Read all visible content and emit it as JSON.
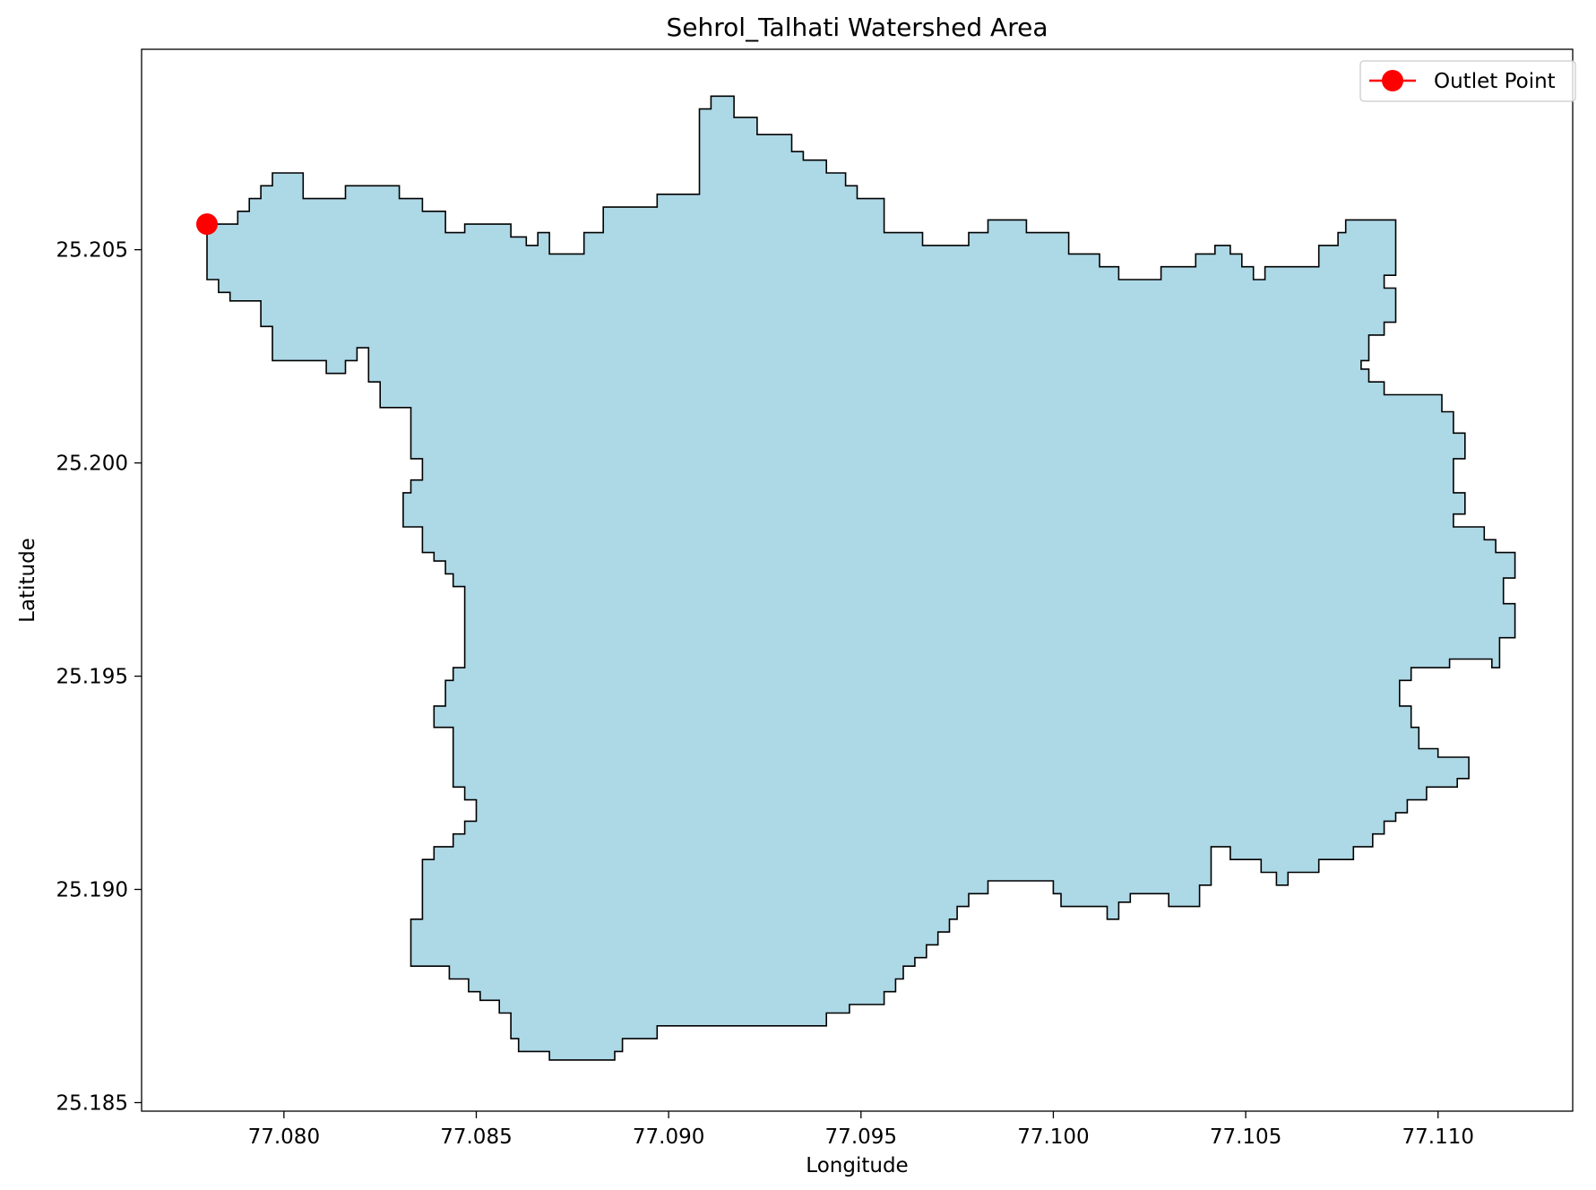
{
  "chart_data": {
    "type": "map",
    "title": "Sehrol_Talhati Watershed Area",
    "xlabel": "Longitude",
    "ylabel": "Latitude",
    "xlim": [
      77.0763,
      77.1135
    ],
    "ylim": [
      25.1848,
      25.2097
    ],
    "xticks": [
      77.08,
      77.085,
      77.09,
      77.095,
      77.1,
      77.105,
      77.11
    ],
    "xtick_labels": [
      "77.080",
      "77.085",
      "77.090",
      "77.095",
      "77.100",
      "77.105",
      "77.110"
    ],
    "yticks": [
      25.185,
      25.19,
      25.195,
      25.2,
      25.205
    ],
    "ytick_labels": [
      "25.185",
      "25.190",
      "25.195",
      "25.200",
      "25.205"
    ],
    "grid": false,
    "legend_position": "top-right",
    "legend": [
      {
        "label": "Outlet Point",
        "color": "#ff0000",
        "marker": "circle"
      }
    ],
    "watershed": {
      "fill_color": "#add8e6",
      "edge_color": "#000000",
      "boundary": [
        [
          77.078,
          25.2056
        ],
        [
          77.0788,
          25.2056
        ],
        [
          77.0788,
          25.2059
        ],
        [
          77.0791,
          25.2059
        ],
        [
          77.0791,
          25.2062
        ],
        [
          77.0794,
          25.2062
        ],
        [
          77.0794,
          25.2065
        ],
        [
          77.0797,
          25.2065
        ],
        [
          77.0797,
          25.2068
        ],
        [
          77.0805,
          25.2068
        ],
        [
          77.0805,
          25.2062
        ],
        [
          77.0816,
          25.2062
        ],
        [
          77.0816,
          25.2065
        ],
        [
          77.083,
          25.2065
        ],
        [
          77.083,
          25.2062
        ],
        [
          77.0836,
          25.2062
        ],
        [
          77.0836,
          25.2059
        ],
        [
          77.0842,
          25.2059
        ],
        [
          77.0842,
          25.2054
        ],
        [
          77.0847,
          25.2054
        ],
        [
          77.0847,
          25.2056
        ],
        [
          77.0859,
          25.2056
        ],
        [
          77.0859,
          25.2053
        ],
        [
          77.0863,
          25.2053
        ],
        [
          77.0863,
          25.2051
        ],
        [
          77.0866,
          25.2051
        ],
        [
          77.0866,
          25.2054
        ],
        [
          77.0869,
          25.2054
        ],
        [
          77.0869,
          25.2049
        ],
        [
          77.0878,
          25.2049
        ],
        [
          77.0878,
          25.2054
        ],
        [
          77.0883,
          25.2054
        ],
        [
          77.0883,
          25.206
        ],
        [
          77.0897,
          25.206
        ],
        [
          77.0897,
          25.2063
        ],
        [
          77.0908,
          25.2063
        ],
        [
          77.0908,
          25.2083
        ],
        [
          77.0911,
          25.2083
        ],
        [
          77.0911,
          25.2086
        ],
        [
          77.0917,
          25.2086
        ],
        [
          77.0917,
          25.2081
        ],
        [
          77.0923,
          25.2081
        ],
        [
          77.0923,
          25.2077
        ],
        [
          77.0932,
          25.2077
        ],
        [
          77.0932,
          25.2073
        ],
        [
          77.0935,
          25.2073
        ],
        [
          77.0935,
          25.2071
        ],
        [
          77.0941,
          25.2071
        ],
        [
          77.0941,
          25.2068
        ],
        [
          77.0946,
          25.2068
        ],
        [
          77.0946,
          25.2065
        ],
        [
          77.0949,
          25.2065
        ],
        [
          77.0949,
          25.2062
        ],
        [
          77.0956,
          25.2062
        ],
        [
          77.0956,
          25.2054
        ],
        [
          77.0966,
          25.2054
        ],
        [
          77.0966,
          25.2051
        ],
        [
          77.0978,
          25.2051
        ],
        [
          77.0978,
          25.2054
        ],
        [
          77.0983,
          25.2054
        ],
        [
          77.0983,
          25.2057
        ],
        [
          77.0993,
          25.2057
        ],
        [
          77.0993,
          25.2054
        ],
        [
          77.1004,
          25.2054
        ],
        [
          77.1004,
          25.2049
        ],
        [
          77.1012,
          25.2049
        ],
        [
          77.1012,
          25.2046
        ],
        [
          77.1017,
          25.2046
        ],
        [
          77.1017,
          25.2043
        ],
        [
          77.1028,
          25.2043
        ],
        [
          77.1028,
          25.2046
        ],
        [
          77.1037,
          25.2046
        ],
        [
          77.1037,
          25.2049
        ],
        [
          77.1042,
          25.2049
        ],
        [
          77.1042,
          25.2051
        ],
        [
          77.1046,
          25.2051
        ],
        [
          77.1046,
          25.2049
        ],
        [
          77.1049,
          25.2049
        ],
        [
          77.1049,
          25.2046
        ],
        [
          77.1052,
          25.2046
        ],
        [
          77.1052,
          25.2043
        ],
        [
          77.1055,
          25.2043
        ],
        [
          77.1055,
          25.2046
        ],
        [
          77.1069,
          25.2046
        ],
        [
          77.1069,
          25.2051
        ],
        [
          77.1074,
          25.2051
        ],
        [
          77.1074,
          25.2054
        ],
        [
          77.1076,
          25.2054
        ],
        [
          77.1076,
          25.2057
        ],
        [
          77.1089,
          25.2057
        ],
        [
          77.1089,
          25.2044
        ],
        [
          77.1086,
          25.2044
        ],
        [
          77.1086,
          25.2041
        ],
        [
          77.1089,
          25.2041
        ],
        [
          77.1089,
          25.2033
        ],
        [
          77.1086,
          25.2033
        ],
        [
          77.1086,
          25.203
        ],
        [
          77.1082,
          25.203
        ],
        [
          77.1082,
          25.2024
        ],
        [
          77.108,
          25.2024
        ],
        [
          77.108,
          25.2022
        ],
        [
          77.1082,
          25.2022
        ],
        [
          77.1082,
          25.2019
        ],
        [
          77.1086,
          25.2019
        ],
        [
          77.1086,
          25.2016
        ],
        [
          77.1101,
          25.2016
        ],
        [
          77.1101,
          25.2012
        ],
        [
          77.1104,
          25.2012
        ],
        [
          77.1104,
          25.2007
        ],
        [
          77.1107,
          25.2007
        ],
        [
          77.1107,
          25.2001
        ],
        [
          77.1104,
          25.2001
        ],
        [
          77.1104,
          25.1993
        ],
        [
          77.1107,
          25.1993
        ],
        [
          77.1107,
          25.1988
        ],
        [
          77.1104,
          25.1988
        ],
        [
          77.1104,
          25.1985
        ],
        [
          77.1112,
          25.1985
        ],
        [
          77.1112,
          25.1982
        ],
        [
          77.1115,
          25.1982
        ],
        [
          77.1115,
          25.1979
        ],
        [
          77.112,
          25.1979
        ],
        [
          77.112,
          25.1973
        ],
        [
          77.1117,
          25.1973
        ],
        [
          77.1117,
          25.1967
        ],
        [
          77.112,
          25.1967
        ],
        [
          77.112,
          25.1959
        ],
        [
          77.1116,
          25.1959
        ],
        [
          77.1116,
          25.1952
        ],
        [
          77.1114,
          25.1952
        ],
        [
          77.1114,
          25.1954
        ],
        [
          77.1103,
          25.1954
        ],
        [
          77.1103,
          25.1952
        ],
        [
          77.1093,
          25.1952
        ],
        [
          77.1093,
          25.1949
        ],
        [
          77.109,
          25.1949
        ],
        [
          77.109,
          25.1943
        ],
        [
          77.1093,
          25.1943
        ],
        [
          77.1093,
          25.1938
        ],
        [
          77.1095,
          25.1938
        ],
        [
          77.1095,
          25.1933
        ],
        [
          77.11,
          25.1933
        ],
        [
          77.11,
          25.1931
        ],
        [
          77.1108,
          25.1931
        ],
        [
          77.1108,
          25.1926
        ],
        [
          77.1105,
          25.1926
        ],
        [
          77.1105,
          25.1924
        ],
        [
          77.1097,
          25.1924
        ],
        [
          77.1097,
          25.1921
        ],
        [
          77.1092,
          25.1921
        ],
        [
          77.1092,
          25.1918
        ],
        [
          77.1089,
          25.1918
        ],
        [
          77.1089,
          25.1916
        ],
        [
          77.1086,
          25.1916
        ],
        [
          77.1086,
          25.1913
        ],
        [
          77.1083,
          25.1913
        ],
        [
          77.1083,
          25.191
        ],
        [
          77.1078,
          25.191
        ],
        [
          77.1078,
          25.1907
        ],
        [
          77.1069,
          25.1907
        ],
        [
          77.1069,
          25.1904
        ],
        [
          77.1061,
          25.1904
        ],
        [
          77.1061,
          25.1901
        ],
        [
          77.1058,
          25.1901
        ],
        [
          77.1058,
          25.1904
        ],
        [
          77.1054,
          25.1904
        ],
        [
          77.1054,
          25.1907
        ],
        [
          77.1046,
          25.1907
        ],
        [
          77.1046,
          25.191
        ],
        [
          77.1041,
          25.191
        ],
        [
          77.1041,
          25.1901
        ],
        [
          77.1038,
          25.1901
        ],
        [
          77.1038,
          25.1896
        ],
        [
          77.103,
          25.1896
        ],
        [
          77.103,
          25.1899
        ],
        [
          77.102,
          25.1899
        ],
        [
          77.102,
          25.1897
        ],
        [
          77.1017,
          25.1897
        ],
        [
          77.1017,
          25.1893
        ],
        [
          77.1014,
          25.1893
        ],
        [
          77.1014,
          25.1896
        ],
        [
          77.1002,
          25.1896
        ],
        [
          77.1002,
          25.1899
        ],
        [
          77.1,
          25.1899
        ],
        [
          77.1,
          25.1902
        ],
        [
          77.0983,
          25.1902
        ],
        [
          77.0983,
          25.1899
        ],
        [
          77.0978,
          25.1899
        ],
        [
          77.0978,
          25.1896
        ],
        [
          77.0975,
          25.1896
        ],
        [
          77.0975,
          25.1893
        ],
        [
          77.0973,
          25.1893
        ],
        [
          77.0973,
          25.189
        ],
        [
          77.097,
          25.189
        ],
        [
          77.097,
          25.1887
        ],
        [
          77.0967,
          25.1887
        ],
        [
          77.0967,
          25.1884
        ],
        [
          77.0964,
          25.1884
        ],
        [
          77.0964,
          25.1882
        ],
        [
          77.0961,
          25.1882
        ],
        [
          77.0961,
          25.1879
        ],
        [
          77.0959,
          25.1879
        ],
        [
          77.0959,
          25.1876
        ],
        [
          77.0956,
          25.1876
        ],
        [
          77.0956,
          25.1873
        ],
        [
          77.0947,
          25.1873
        ],
        [
          77.0947,
          25.1871
        ],
        [
          77.0941,
          25.1871
        ],
        [
          77.0941,
          25.1868
        ],
        [
          77.0897,
          25.1868
        ],
        [
          77.0897,
          25.1865
        ],
        [
          77.0888,
          25.1865
        ],
        [
          77.0888,
          25.1862
        ],
        [
          77.0886,
          25.1862
        ],
        [
          77.0886,
          25.186
        ],
        [
          77.0869,
          25.186
        ],
        [
          77.0869,
          25.1862
        ],
        [
          77.0861,
          25.1862
        ],
        [
          77.0861,
          25.1865
        ],
        [
          77.0859,
          25.1865
        ],
        [
          77.0859,
          25.1871
        ],
        [
          77.0856,
          25.1871
        ],
        [
          77.0856,
          25.1874
        ],
        [
          77.0851,
          25.1874
        ],
        [
          77.0851,
          25.1876
        ],
        [
          77.0848,
          25.1876
        ],
        [
          77.0848,
          25.1879
        ],
        [
          77.0843,
          25.1879
        ],
        [
          77.0843,
          25.1882
        ],
        [
          77.0833,
          25.1882
        ],
        [
          77.0833,
          25.1893
        ],
        [
          77.0836,
          25.1893
        ],
        [
          77.0836,
          25.1907
        ],
        [
          77.0839,
          25.1907
        ],
        [
          77.0839,
          25.191
        ],
        [
          77.0844,
          25.191
        ],
        [
          77.0844,
          25.1913
        ],
        [
          77.0847,
          25.1913
        ],
        [
          77.0847,
          25.1916
        ],
        [
          77.085,
          25.1916
        ],
        [
          77.085,
          25.1921
        ],
        [
          77.0847,
          25.1921
        ],
        [
          77.0847,
          25.1924
        ],
        [
          77.0844,
          25.1924
        ],
        [
          77.0844,
          25.1938
        ],
        [
          77.0839,
          25.1938
        ],
        [
          77.0839,
          25.1943
        ],
        [
          77.0842,
          25.1943
        ],
        [
          77.0842,
          25.1949
        ],
        [
          77.0844,
          25.1949
        ],
        [
          77.0844,
          25.1952
        ],
        [
          77.0847,
          25.1952
        ],
        [
          77.0847,
          25.1971
        ],
        [
          77.0844,
          25.1971
        ],
        [
          77.0844,
          25.1974
        ],
        [
          77.0842,
          25.1974
        ],
        [
          77.0842,
          25.1977
        ],
        [
          77.0839,
          25.1977
        ],
        [
          77.0839,
          25.1979
        ],
        [
          77.0836,
          25.1979
        ],
        [
          77.0836,
          25.1985
        ],
        [
          77.0831,
          25.1985
        ],
        [
          77.0831,
          25.1993
        ],
        [
          77.0833,
          25.1993
        ],
        [
          77.0833,
          25.1996
        ],
        [
          77.0836,
          25.1996
        ],
        [
          77.0836,
          25.2001
        ],
        [
          77.0833,
          25.2001
        ],
        [
          77.0833,
          25.2013
        ],
        [
          77.0825,
          25.2013
        ],
        [
          77.0825,
          25.2019
        ],
        [
          77.0822,
          25.2019
        ],
        [
          77.0822,
          25.2027
        ],
        [
          77.0819,
          25.2027
        ],
        [
          77.0819,
          25.2024
        ],
        [
          77.0816,
          25.2024
        ],
        [
          77.0816,
          25.2021
        ],
        [
          77.0811,
          25.2021
        ],
        [
          77.0811,
          25.2024
        ],
        [
          77.0797,
          25.2024
        ],
        [
          77.0797,
          25.2032
        ],
        [
          77.0794,
          25.2032
        ],
        [
          77.0794,
          25.2038
        ],
        [
          77.0786,
          25.2038
        ],
        [
          77.0786,
          25.204
        ],
        [
          77.0783,
          25.204
        ],
        [
          77.0783,
          25.2043
        ],
        [
          77.078,
          25.2043
        ]
      ]
    },
    "outlet_point": {
      "label": "Outlet Point",
      "x": 77.078,
      "y": 25.2056,
      "color": "#ff0000"
    }
  }
}
